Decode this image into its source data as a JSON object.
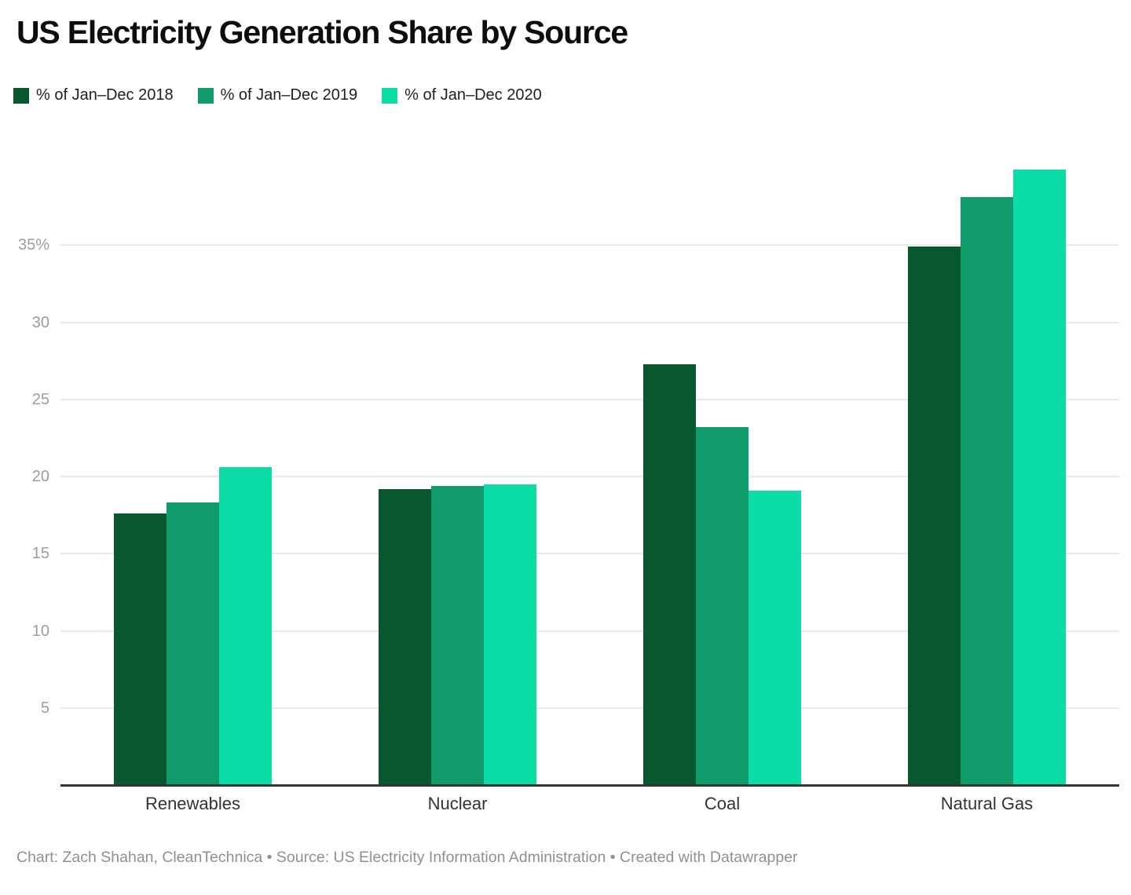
{
  "title": "US Electricity Generation Share by Source",
  "footer": {
    "credit": "Chart: Zach Shahan, CleanTechnica • Source: US Electricity Information Administration • Created with Datawrapper"
  },
  "chart_data": {
    "type": "bar",
    "grouped": true,
    "title": "US Electricity Generation Share by Source",
    "categories": [
      "Renewables",
      "Nuclear",
      "Coal",
      "Natural Gas"
    ],
    "series": [
      {
        "name": "% of Jan–Dec 2018",
        "color": "#07582f",
        "values": [
          17.6,
          19.2,
          27.3,
          34.9
        ]
      },
      {
        "name": "% of Jan–Dec 2019",
        "color": "#0f9b6a",
        "values": [
          18.3,
          19.4,
          23.2,
          38.1
        ]
      },
      {
        "name": "% of Jan–Dec 2020",
        "color": "#0cdca6",
        "values": [
          20.6,
          19.5,
          19.1,
          39.9
        ]
      }
    ],
    "xlabel": "",
    "ylabel": "",
    "ylim": [
      0,
      40
    ],
    "y_ticks": [
      5,
      10,
      15,
      20,
      25,
      30,
      35
    ],
    "y_tick_labels": [
      "5",
      "10",
      "15",
      "20",
      "25",
      "30",
      "35%"
    ],
    "grid": "horizontal",
    "legend_position": "top-left",
    "colors": {
      "background": "#ffffff",
      "gridline": "#e9e9e9",
      "axis_line": "#333333",
      "tick_label": "#9d9d9d",
      "category_label": "#333333",
      "title_text": "#0d0d0d",
      "footer_text": "#909090"
    }
  }
}
